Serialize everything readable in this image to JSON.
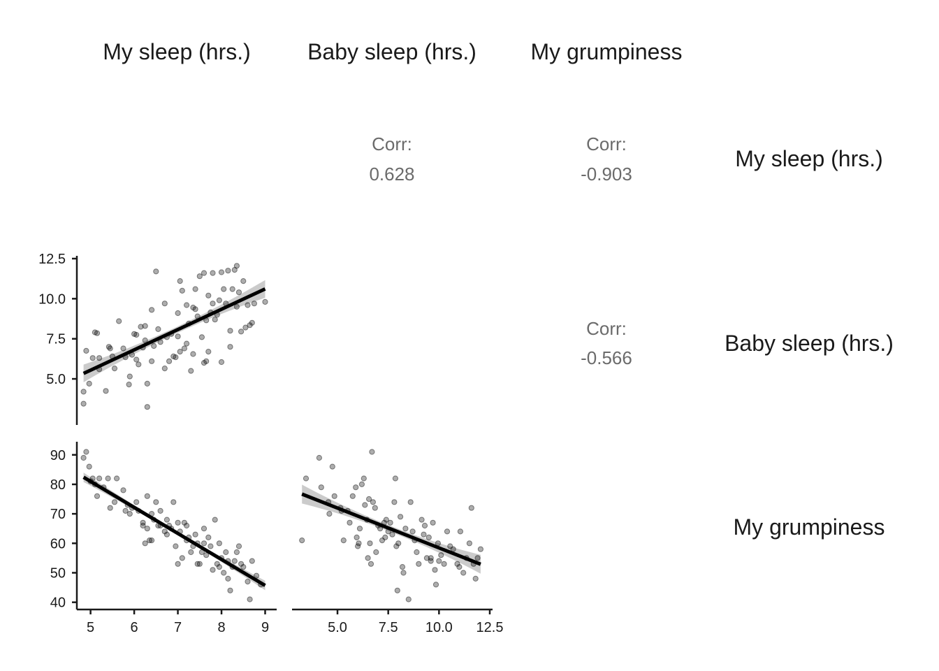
{
  "chart_data": {
    "type": "scatter",
    "layout": "pairs-matrix",
    "variables": [
      "My sleep (hrs.)",
      "Baby sleep (hrs.)",
      "My grumpiness"
    ],
    "correlation_label": "Corr:",
    "correlations": [
      {
        "row": 0,
        "col": 1,
        "value": "0.628"
      },
      {
        "row": 0,
        "col": 2,
        "value": "-0.903"
      },
      {
        "row": 1,
        "col": 2,
        "value": "-0.566"
      }
    ],
    "axes": {
      "my_sleep": {
        "range": [
          4.75,
          9.2
        ],
        "ticks": [
          "5",
          "6",
          "7",
          "8",
          "9"
        ],
        "tick_values": [
          5,
          6,
          7,
          8,
          9
        ]
      },
      "baby_sleep_x": {
        "range": [
          2.9,
          12.5
        ],
        "ticks": [
          "5.0",
          "7.5",
          "10.0",
          "12.5"
        ],
        "tick_values": [
          5.0,
          7.5,
          10.0,
          12.5
        ]
      },
      "baby_sleep_y": {
        "range": [
          2.3,
          12.5
        ],
        "ticks": [
          "5.0",
          "7.5",
          "10.0",
          "12.5"
        ],
        "tick_values": [
          5.0,
          7.5,
          10.0,
          12.5
        ]
      },
      "grumpiness": {
        "range": [
          38.5,
          93.5
        ],
        "ticks": [
          "40",
          "50",
          "60",
          "70",
          "80",
          "90"
        ],
        "tick_values": [
          40,
          50,
          60,
          70,
          80,
          90
        ]
      }
    },
    "panels": [
      {
        "id": "baby-vs-my-sleep",
        "row": 1,
        "col": 0,
        "x": "my_sleep",
        "y": "baby_sleep_y",
        "fit": {
          "x": [
            4.84,
            9.0
          ],
          "y": [
            5.34,
            10.61
          ],
          "ci_halfwidth_ends": 0.55,
          "ci_halfwidth_mid": 0.2
        },
        "points": [
          [
            4.84,
            4.2
          ],
          [
            4.84,
            3.45
          ],
          [
            4.9,
            6.75
          ],
          [
            4.97,
            4.7
          ],
          [
            5.1,
            7.9
          ],
          [
            5.05,
            6.3
          ],
          [
            5.15,
            7.85
          ],
          [
            5.2,
            5.6
          ],
          [
            5.35,
            4.25
          ],
          [
            5.42,
            7.0
          ],
          [
            5.5,
            6.4
          ],
          [
            5.55,
            5.65
          ],
          [
            5.65,
            8.6
          ],
          [
            5.75,
            6.9
          ],
          [
            5.8,
            6.35
          ],
          [
            5.88,
            4.65
          ],
          [
            5.9,
            5.15
          ],
          [
            5.95,
            6.5
          ],
          [
            6.0,
            7.8
          ],
          [
            6.05,
            6.2
          ],
          [
            6.1,
            5.9
          ],
          [
            6.2,
            6.95
          ],
          [
            6.25,
            8.3
          ],
          [
            6.25,
            7.4
          ],
          [
            6.3,
            4.7
          ],
          [
            6.3,
            3.25
          ],
          [
            6.4,
            6.1
          ],
          [
            6.4,
            9.3
          ],
          [
            6.45,
            7.05
          ],
          [
            6.5,
            11.7
          ],
          [
            6.55,
            8.1
          ],
          [
            6.6,
            7.3
          ],
          [
            6.7,
            9.7
          ],
          [
            6.7,
            5.65
          ],
          [
            6.75,
            7.6
          ],
          [
            6.8,
            6.1
          ],
          [
            6.85,
            7.8
          ],
          [
            6.9,
            6.4
          ],
          [
            6.95,
            6.35
          ],
          [
            7.0,
            9.1
          ],
          [
            7.0,
            7.65
          ],
          [
            7.05,
            11.1
          ],
          [
            7.05,
            6.7
          ],
          [
            7.1,
            10.5
          ],
          [
            7.15,
            6.9
          ],
          [
            7.2,
            7.2
          ],
          [
            7.25,
            8.45
          ],
          [
            7.3,
            5.5
          ],
          [
            7.35,
            6.55
          ],
          [
            7.4,
            9.35
          ],
          [
            7.4,
            10.6
          ],
          [
            7.45,
            8.9
          ],
          [
            7.5,
            11.4
          ],
          [
            7.55,
            7.6
          ],
          [
            7.6,
            6.0
          ],
          [
            7.6,
            11.6
          ],
          [
            7.65,
            8.65
          ],
          [
            7.7,
            10.2
          ],
          [
            7.75,
            9.15
          ],
          [
            7.8,
            9.7
          ],
          [
            7.85,
            8.7
          ],
          [
            7.9,
            9.0
          ],
          [
            7.95,
            9.9
          ],
          [
            8.0,
            11.65
          ],
          [
            8.05,
            10.6
          ],
          [
            8.1,
            9.7
          ],
          [
            8.15,
            11.75
          ],
          [
            8.2,
            8.0
          ],
          [
            8.25,
            10.6
          ],
          [
            8.3,
            11.8
          ],
          [
            8.35,
            9.5
          ],
          [
            8.4,
            10.4
          ],
          [
            8.45,
            7.95
          ],
          [
            8.5,
            11.1
          ],
          [
            8.55,
            8.2
          ],
          [
            8.6,
            9.6
          ],
          [
            8.7,
            8.5
          ],
          [
            8.75,
            9.7
          ],
          [
            8.2,
            7.0
          ],
          [
            7.65,
            6.1
          ],
          [
            8.35,
            12.05
          ],
          [
            8.65,
            8.35
          ],
          [
            9.0,
            9.8
          ],
          [
            6.15,
            8.25
          ],
          [
            5.2,
            6.3
          ],
          [
            7.8,
            11.6
          ],
          [
            7.2,
            9.6
          ],
          [
            7.7,
            6.7
          ],
          [
            8.0,
            6.05
          ],
          [
            5.45,
            6.9
          ],
          [
            6.05,
            7.75
          ],
          [
            7.35,
            9.45
          ]
        ]
      },
      {
        "id": "grumpiness-vs-my-sleep",
        "row": 2,
        "col": 0,
        "x": "my_sleep",
        "y": "grumpiness",
        "fit": {
          "x": [
            4.84,
            9.0
          ],
          "y": [
            82.4,
            45.7
          ],
          "ci_halfwidth_ends": 1.6,
          "ci_halfwidth_mid": 0.6
        },
        "points": [
          [
            4.84,
            89
          ],
          [
            4.9,
            91
          ],
          [
            4.97,
            86
          ],
          [
            5.05,
            82
          ],
          [
            5.1,
            80
          ],
          [
            5.15,
            76
          ],
          [
            5.2,
            82
          ],
          [
            5.3,
            79
          ],
          [
            5.4,
            82
          ],
          [
            5.45,
            72
          ],
          [
            5.55,
            74
          ],
          [
            5.6,
            82
          ],
          [
            5.75,
            78
          ],
          [
            5.85,
            73
          ],
          [
            5.9,
            70
          ],
          [
            5.95,
            72
          ],
          [
            6.05,
            74
          ],
          [
            6.1,
            71
          ],
          [
            6.2,
            67
          ],
          [
            6.25,
            60
          ],
          [
            6.3,
            76
          ],
          [
            6.3,
            65
          ],
          [
            6.35,
            61
          ],
          [
            6.4,
            70
          ],
          [
            6.45,
            68
          ],
          [
            6.5,
            74
          ],
          [
            6.55,
            66
          ],
          [
            6.6,
            71
          ],
          [
            6.7,
            64
          ],
          [
            6.75,
            68
          ],
          [
            6.8,
            66
          ],
          [
            6.85,
            65
          ],
          [
            6.9,
            74
          ],
          [
            6.95,
            59
          ],
          [
            7.0,
            67
          ],
          [
            7.0,
            53
          ],
          [
            7.05,
            64
          ],
          [
            7.1,
            55
          ],
          [
            7.15,
            67
          ],
          [
            7.2,
            61
          ],
          [
            7.25,
            62
          ],
          [
            7.3,
            57
          ],
          [
            7.35,
            59
          ],
          [
            7.4,
            63
          ],
          [
            7.45,
            60
          ],
          [
            7.5,
            53
          ],
          [
            7.55,
            57
          ],
          [
            7.6,
            65
          ],
          [
            7.65,
            56
          ],
          [
            7.7,
            62
          ],
          [
            7.75,
            59
          ],
          [
            7.8,
            51
          ],
          [
            7.85,
            68
          ],
          [
            7.9,
            53
          ],
          [
            7.95,
            60
          ],
          [
            8.0,
            55
          ],
          [
            8.05,
            50
          ],
          [
            8.1,
            57
          ],
          [
            8.15,
            48
          ],
          [
            8.2,
            44
          ],
          [
            8.25,
            52
          ],
          [
            8.3,
            54
          ],
          [
            8.35,
            57
          ],
          [
            8.4,
            59
          ],
          [
            8.5,
            52
          ],
          [
            8.6,
            47
          ],
          [
            8.65,
            41
          ],
          [
            8.7,
            54
          ],
          [
            8.8,
            49
          ],
          [
            8.9,
            46
          ],
          [
            6.4,
            61
          ],
          [
            7.2,
            66
          ],
          [
            5.8,
            71
          ],
          [
            6.6,
            66
          ],
          [
            7.45,
            53
          ],
          [
            8.45,
            53
          ],
          [
            5.0,
            81
          ],
          [
            6.2,
            66
          ],
          [
            6.75,
            63
          ],
          [
            7.6,
            60
          ],
          [
            7.95,
            52
          ],
          [
            8.15,
            54
          ]
        ]
      },
      {
        "id": "grumpiness-vs-baby-sleep",
        "row": 2,
        "col": 1,
        "x": "baby_sleep_x",
        "y": "grumpiness",
        "fit": {
          "x": [
            3.25,
            12.05
          ],
          "y": [
            76.7,
            52.9
          ],
          "ci_halfwidth_ends": 3.2,
          "ci_halfwidth_mid": 1.0
        },
        "points": [
          [
            3.25,
            61
          ],
          [
            3.45,
            82
          ],
          [
            4.1,
            89
          ],
          [
            4.2,
            79
          ],
          [
            4.55,
            74
          ],
          [
            4.6,
            70
          ],
          [
            4.75,
            86
          ],
          [
            4.85,
            76
          ],
          [
            5.15,
            72
          ],
          [
            5.3,
            61
          ],
          [
            5.5,
            71
          ],
          [
            5.6,
            67
          ],
          [
            5.75,
            76
          ],
          [
            5.9,
            79
          ],
          [
            5.95,
            62
          ],
          [
            6.05,
            60
          ],
          [
            6.1,
            65
          ],
          [
            6.2,
            80
          ],
          [
            6.3,
            82
          ],
          [
            6.35,
            73
          ],
          [
            6.45,
            68
          ],
          [
            6.5,
            55
          ],
          [
            6.55,
            75
          ],
          [
            6.65,
            53
          ],
          [
            6.7,
            91
          ],
          [
            6.75,
            74
          ],
          [
            6.85,
            72
          ],
          [
            6.9,
            57
          ],
          [
            7.0,
            66
          ],
          [
            7.1,
            65
          ],
          [
            7.2,
            61
          ],
          [
            7.3,
            67
          ],
          [
            7.4,
            68
          ],
          [
            7.5,
            64
          ],
          [
            7.6,
            67
          ],
          [
            7.7,
            63
          ],
          [
            7.8,
            74
          ],
          [
            7.85,
            82
          ],
          [
            7.9,
            59
          ],
          [
            7.95,
            44
          ],
          [
            8.1,
            69
          ],
          [
            8.2,
            52
          ],
          [
            8.25,
            50
          ],
          [
            8.35,
            65
          ],
          [
            8.5,
            41
          ],
          [
            8.6,
            74
          ],
          [
            8.7,
            64
          ],
          [
            8.8,
            61
          ],
          [
            8.9,
            57
          ],
          [
            9.0,
            53
          ],
          [
            9.15,
            68
          ],
          [
            9.3,
            66
          ],
          [
            9.4,
            55
          ],
          [
            9.5,
            62
          ],
          [
            9.6,
            54
          ],
          [
            9.7,
            67
          ],
          [
            9.8,
            51
          ],
          [
            9.85,
            46
          ],
          [
            9.95,
            60
          ],
          [
            10.1,
            56
          ],
          [
            10.25,
            53
          ],
          [
            10.4,
            64
          ],
          [
            10.55,
            59
          ],
          [
            10.7,
            58
          ],
          [
            10.9,
            53
          ],
          [
            11.05,
            64
          ],
          [
            11.2,
            50
          ],
          [
            11.35,
            55
          ],
          [
            11.5,
            60
          ],
          [
            11.6,
            72
          ],
          [
            11.7,
            53
          ],
          [
            11.8,
            48
          ],
          [
            11.9,
            55
          ],
          [
            12.05,
            58
          ],
          [
            6.0,
            59
          ],
          [
            7.35,
            62
          ],
          [
            8.0,
            60
          ],
          [
            9.25,
            63
          ],
          [
            10.0,
            54
          ],
          [
            6.6,
            60
          ],
          [
            5.2,
            71
          ],
          [
            11.0,
            52
          ],
          [
            9.6,
            55
          ]
        ]
      }
    ]
  }
}
